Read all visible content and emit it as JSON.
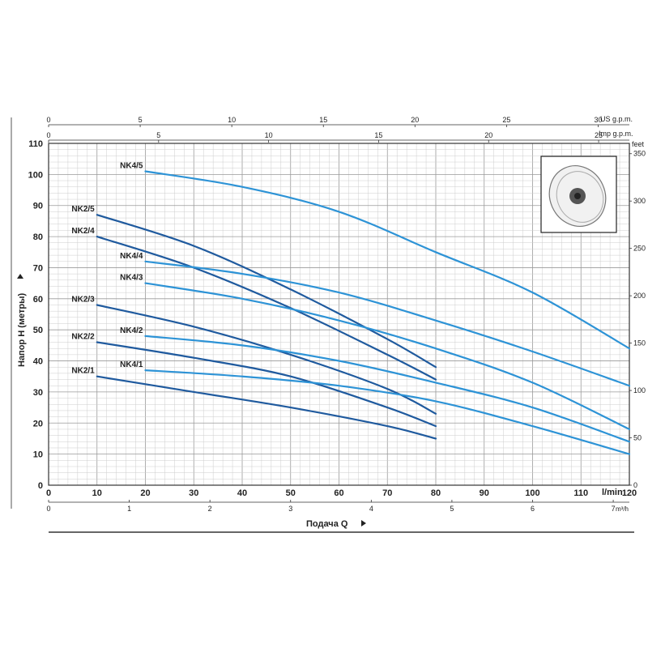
{
  "chart_data": {
    "type": "line",
    "xlabel": "Подача Q",
    "ylabel": "Напор H (метры)",
    "x_unit": "l/min",
    "x_ticks": [
      0,
      10,
      20,
      30,
      40,
      50,
      60,
      70,
      80,
      90,
      100,
      110,
      120
    ],
    "xlim": [
      0,
      120
    ],
    "y_ticks": [
      0,
      10,
      20,
      30,
      40,
      50,
      60,
      70,
      80,
      90,
      100,
      110
    ],
    "ylim": [
      0,
      110
    ],
    "grid": true,
    "secondary_axes": {
      "bottom_m3h": {
        "label": "m³/h",
        "ticks": [
          "0",
          "1",
          "2",
          "3",
          "4",
          "5",
          "6",
          "7"
        ]
      },
      "top_us_gpm": {
        "label": "US g.p.m.",
        "ticks": [
          "0",
          "5",
          "10",
          "15",
          "20",
          "25",
          "30"
        ]
      },
      "top_imp_gpm": {
        "label": "Imp g.p.m.",
        "ticks": [
          "0",
          "5",
          "10",
          "15",
          "20",
          "25"
        ]
      },
      "right_feet": {
        "label": "feet",
        "ticks": [
          "0",
          "50",
          "100",
          "150",
          "200",
          "250",
          "300",
          "350"
        ]
      }
    },
    "colors": {
      "nk2": "#1f5a9e",
      "nk4": "#2d93d6"
    },
    "series": [
      {
        "name": "NK2/1",
        "group": "nk2",
        "x": [
          10,
          30,
          50,
          70,
          80
        ],
        "y": [
          35,
          30,
          25,
          19,
          15
        ]
      },
      {
        "name": "NK2/2",
        "group": "nk2",
        "x": [
          10,
          30,
          50,
          70,
          80
        ],
        "y": [
          46,
          41,
          35,
          25,
          19
        ]
      },
      {
        "name": "NK2/3",
        "group": "nk2",
        "x": [
          10,
          30,
          50,
          70,
          80
        ],
        "y": [
          58,
          51,
          42,
          31,
          23
        ]
      },
      {
        "name": "NK2/4",
        "group": "nk2",
        "x": [
          10,
          30,
          50,
          70,
          80
        ],
        "y": [
          80,
          70,
          57,
          42,
          34
        ]
      },
      {
        "name": "NK2/5",
        "group": "nk2",
        "x": [
          10,
          30,
          50,
          70,
          80
        ],
        "y": [
          87,
          77,
          63,
          47,
          38
        ]
      },
      {
        "name": "NK4/1",
        "group": "nk4",
        "x": [
          20,
          40,
          60,
          80,
          100,
          120
        ],
        "y": [
          37,
          35,
          32,
          27,
          19,
          10
        ]
      },
      {
        "name": "NK4/2",
        "group": "nk4",
        "x": [
          20,
          40,
          60,
          80,
          100,
          120
        ],
        "y": [
          48,
          45,
          40,
          33,
          25,
          14
        ]
      },
      {
        "name": "NK4/3",
        "group": "nk4",
        "x": [
          20,
          40,
          60,
          80,
          100,
          120
        ],
        "y": [
          65,
          60,
          53,
          44,
          33,
          18
        ]
      },
      {
        "name": "NK4/4",
        "group": "nk4",
        "x": [
          20,
          40,
          60,
          80,
          100,
          120
        ],
        "y": [
          72,
          68,
          62,
          53,
          43,
          32
        ]
      },
      {
        "name": "NK4/5",
        "group": "nk4",
        "x": [
          20,
          40,
          60,
          80,
          100,
          120
        ],
        "y": [
          101,
          96,
          88,
          75,
          62,
          44
        ]
      }
    ]
  }
}
